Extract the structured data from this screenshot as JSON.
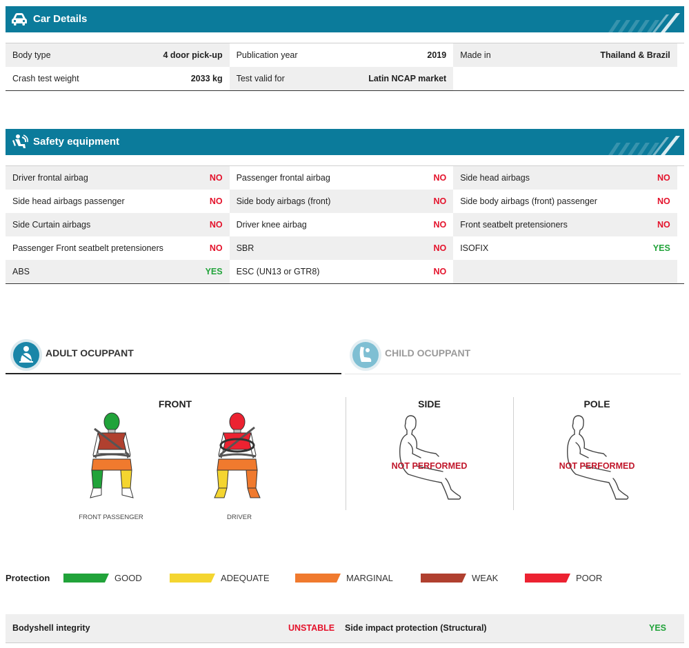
{
  "car_details": {
    "title": "Car Details",
    "icon": "car-icon",
    "rows": [
      [
        {
          "label": "Body type",
          "value": "4 door pick-up"
        },
        {
          "label": "Publication year",
          "value": "2019"
        },
        {
          "label": "Made in",
          "value": "Thailand & Brazil"
        }
      ],
      [
        {
          "label": "Crash test weight",
          "value": "2033 kg"
        },
        {
          "label": "Test valid for",
          "value": "Latin NCAP market"
        },
        {
          "label": "",
          "value": ""
        }
      ]
    ]
  },
  "safety_equipment": {
    "title": "Safety equipment",
    "icon": "airbag-icon",
    "rows": [
      [
        {
          "label": "Driver frontal airbag",
          "value": "NO"
        },
        {
          "label": "Passenger frontal airbag",
          "value": "NO"
        },
        {
          "label": "Side head airbags",
          "value": "NO"
        }
      ],
      [
        {
          "label": "Side head airbags passenger",
          "value": "NO"
        },
        {
          "label": "Side body airbags (front)",
          "value": "NO"
        },
        {
          "label": "Side body airbags (front) passenger",
          "value": "NO"
        }
      ],
      [
        {
          "label": "Side Curtain airbags",
          "value": "NO"
        },
        {
          "label": "Driver knee airbag",
          "value": "NO"
        },
        {
          "label": "Front seatbelt pretensioners",
          "value": "NO"
        }
      ],
      [
        {
          "label": "Passenger Front seatbelt pretensioners",
          "value": "NO"
        },
        {
          "label": "SBR",
          "value": "NO"
        },
        {
          "label": "ISOFIX",
          "value": "YES"
        }
      ],
      [
        {
          "label": "ABS",
          "value": "YES"
        },
        {
          "label": "ESC (UN13 or GTR8)",
          "value": "NO"
        },
        {
          "label": "",
          "value": ""
        }
      ]
    ]
  },
  "tabs": {
    "adult": {
      "label": "ADULT OCUPPANT",
      "icon": "seatbelt-person-icon",
      "active": true
    },
    "child": {
      "label": "CHILD OCUPPANT",
      "icon": "child-seat-icon",
      "active": false
    }
  },
  "test_results": {
    "front": {
      "title": "FRONT",
      "passenger_caption": "FRONT PASSENGER",
      "driver_caption": "DRIVER",
      "passenger_ratings": {
        "head": "GOOD",
        "chest": "WEAK",
        "upper_legs": "MARGINAL",
        "left_lower_leg": "GOOD",
        "right_lower_leg": "ADEQUATE"
      },
      "driver_ratings": {
        "head": "POOR",
        "chest": "POOR",
        "upper_legs": "MARGINAL",
        "left_lower_leg": "ADEQUATE",
        "right_lower_leg": "MARGINAL"
      }
    },
    "side": {
      "title": "SIDE",
      "status": "NOT PERFORMED"
    },
    "pole": {
      "title": "POLE",
      "status": "NOT PERFORMED"
    }
  },
  "legend": {
    "title": "Protection",
    "items": [
      {
        "label": "GOOD",
        "color": "#21a33a"
      },
      {
        "label": "ADEQUATE",
        "color": "#f4d530"
      },
      {
        "label": "MARGINAL",
        "color": "#f07a2e"
      },
      {
        "label": "WEAK",
        "color": "#b0402f"
      },
      {
        "label": "POOR",
        "color": "#ec2231"
      }
    ]
  },
  "footer": {
    "bodyshell_label": "Bodyshell integrity",
    "bodyshell_value": "UNSTABLE",
    "side_impact_label": "Side impact protection (Structural)",
    "side_impact_value": "YES"
  },
  "colors": {
    "header_bg": "#0b7b9b",
    "no": "#e4122b",
    "yes": "#21a33a",
    "not_performed": "#c0162a"
  }
}
